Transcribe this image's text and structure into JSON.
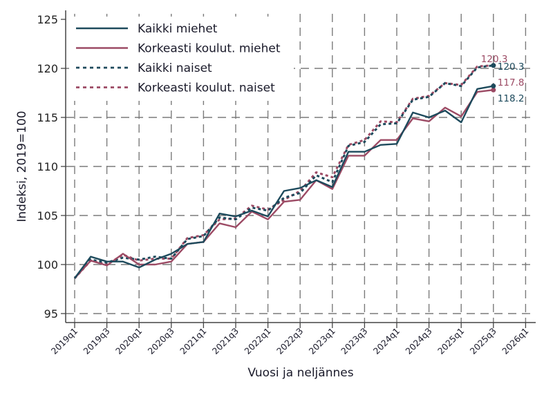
{
  "chart_data": {
    "type": "line",
    "title": "",
    "xlabel": "Vuosi ja neljännes",
    "ylabel": "Indeksi, 2019=100",
    "ylim": [
      94.2,
      125.8
    ],
    "yticks": [
      95,
      100,
      105,
      110,
      115,
      120,
      125
    ],
    "xtick_labels": [
      "2019q1",
      "2019q3",
      "2020q1",
      "2020q3",
      "2021q1",
      "2021q3",
      "2022q1",
      "2022q3",
      "2023q1",
      "2023q3",
      "2024q1",
      "2024q3",
      "2025q1",
      "2025q3",
      "2026q1"
    ],
    "grid": true,
    "legend_position": "upper left",
    "x": [
      "2019q1",
      "2019q2",
      "2019q3",
      "2019q4",
      "2020q1",
      "2020q2",
      "2020q3",
      "2020q4",
      "2021q1",
      "2021q2",
      "2021q3",
      "2021q4",
      "2022q1",
      "2022q2",
      "2022q3",
      "2022q4",
      "2023q1",
      "2023q2",
      "2023q3",
      "2023q4",
      "2024q1",
      "2024q2",
      "2024q3",
      "2024q4",
      "2025q1",
      "2025q2",
      "2025q3"
    ],
    "series": [
      {
        "name": "Kaikki miehet",
        "color": "#1d4a5c",
        "style": "solid",
        "values": [
          98.6,
          100.8,
          100.3,
          100.3,
          99.7,
          100.5,
          101.1,
          102.1,
          102.3,
          105.2,
          104.9,
          105.5,
          104.9,
          107.5,
          107.8,
          108.6,
          107.9,
          111.5,
          111.5,
          112.2,
          112.3,
          115.5,
          115.0,
          115.7,
          114.5,
          117.9,
          118.2
        ],
        "end_label": "118.2"
      },
      {
        "name": "Korkeasti koulut. miehet",
        "color": "#9c4a64",
        "style": "solid",
        "values": [
          98.6,
          100.4,
          99.9,
          101.1,
          100.0,
          100.0,
          100.3,
          102.1,
          102.3,
          104.2,
          103.8,
          105.4,
          104.6,
          106.4,
          106.6,
          108.6,
          107.7,
          111.1,
          111.1,
          112.7,
          112.7,
          114.9,
          114.6,
          116.0,
          115.1,
          117.6,
          117.8
        ],
        "end_label": "117.8"
      },
      {
        "name": "Kaikki naiset",
        "color": "#1d4a5c",
        "style": "dotted",
        "values": [
          98.6,
          100.5,
          100.2,
          100.7,
          100.5,
          100.8,
          100.6,
          102.6,
          102.9,
          104.8,
          104.6,
          105.8,
          105.5,
          106.8,
          107.3,
          109.1,
          108.4,
          112.1,
          112.5,
          114.3,
          114.4,
          116.8,
          117.1,
          118.5,
          118.2,
          120.1,
          120.3
        ],
        "end_label": "120.3"
      },
      {
        "name": "Korkeasti koulut. naiset",
        "color": "#9c4a64",
        "style": "dotted",
        "values": [
          98.6,
          100.4,
          100.0,
          101.0,
          100.4,
          100.6,
          100.6,
          102.7,
          103.0,
          104.6,
          104.7,
          106.0,
          105.6,
          106.6,
          107.5,
          109.4,
          108.9,
          112.2,
          112.7,
          114.6,
          114.5,
          116.9,
          117.2,
          118.5,
          118.3,
          120.2,
          120.3
        ],
        "end_label": "120.3"
      }
    ]
  }
}
